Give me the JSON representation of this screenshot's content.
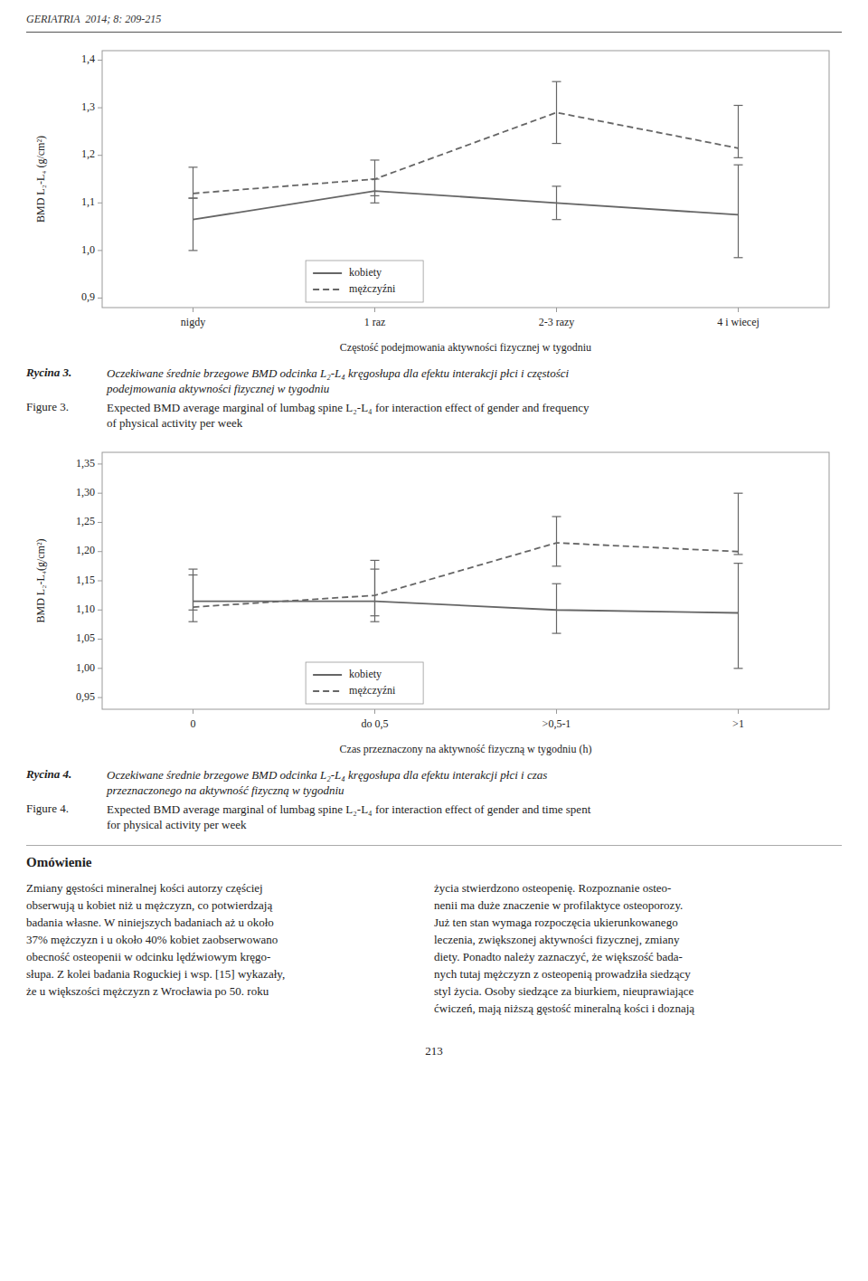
{
  "chart_data": [
    {
      "type": "line",
      "categories": [
        "nigdy",
        "1 raz",
        "2-3 razy",
        "4 i wiecej"
      ],
      "x_label": "Częstość podejmowania aktywności fizycznej w tygodniu",
      "y_label": "BMD L₂-L₄ (g/cm²)",
      "ylim": [
        0.88,
        1.42
      ],
      "yticks": [
        {
          "value": 0.9,
          "label": "0,9"
        },
        {
          "value": 1.0,
          "label": "1,0"
        },
        {
          "value": 1.1,
          "label": "1,1"
        },
        {
          "value": 1.2,
          "label": "1,2"
        },
        {
          "value": 1.3,
          "label": "1,3"
        },
        {
          "value": 1.4,
          "label": "1,4"
        }
      ],
      "grid": false,
      "legend": "lower left",
      "series": [
        {
          "name": "kobiety",
          "color": "#666666",
          "line_style": "solid",
          "values": [
            1.065,
            1.125,
            1.1,
            1.075
          ],
          "error_low": [
            0.065,
            0.025,
            0.035,
            0.09
          ],
          "error_high": [
            0.045,
            0.025,
            0.035,
            0.105
          ]
        },
        {
          "name": "mężczyźni",
          "color": "#666666",
          "line_style": "dashed",
          "values": [
            1.12,
            1.15,
            1.29,
            1.215
          ],
          "error_low": [
            0.01,
            0.035,
            0.065,
            0.02
          ],
          "error_high": [
            0.055,
            0.04,
            0.065,
            0.09
          ]
        }
      ]
    },
    {
      "type": "line",
      "categories": [
        "0",
        "do 0,5",
        ">0,5-1",
        ">1"
      ],
      "x_label": "Czas przeznaczony na aktywność fizyczną w tygodniu (h)",
      "y_label": "BMD L₂-L₄(g/cm²)",
      "ylim": [
        0.93,
        1.37
      ],
      "yticks": [
        {
          "value": 0.95,
          "label": "0,95"
        },
        {
          "value": 1.0,
          "label": "1,00"
        },
        {
          "value": 1.05,
          "label": "1,05"
        },
        {
          "value": 1.1,
          "label": "1,10"
        },
        {
          "value": 1.15,
          "label": "1,15"
        },
        {
          "value": 1.2,
          "label": "1,20"
        },
        {
          "value": 1.25,
          "label": "1,25"
        },
        {
          "value": 1.3,
          "label": "1,30"
        },
        {
          "value": 1.35,
          "label": "1,35"
        }
      ],
      "grid": false,
      "legend": "lower left",
      "series": [
        {
          "name": "kobiety",
          "color": "#666666",
          "line_style": "solid",
          "values": [
            1.115,
            1.115,
            1.1,
            1.095
          ],
          "error_low": [
            0.035,
            0.035,
            0.04,
            0.095
          ],
          "error_high": [
            0.055,
            0.055,
            0.045,
            0.085
          ]
        },
        {
          "name": "mężczyźni",
          "color": "#666666",
          "line_style": "dashed",
          "values": [
            1.105,
            1.125,
            1.215,
            1.2
          ],
          "error_low": [
            0.005,
            0.035,
            0.04,
            0.005
          ],
          "error_high": [
            0.055,
            0.06,
            0.045,
            0.1
          ]
        }
      ]
    }
  ],
  "page": {
    "header": "GERIATRIA  2014; 8: 209-215",
    "captions": [
      {
        "pl": {
          "label": "Rycina 3.",
          "lines": [
            "Oczekiwane średnie brzegowe BMD odcinka L₂-L₄ kręgosłupa dla efektu interakcji płci i częstości",
            "podejmowania aktywności fizycznej w tygodniu"
          ]
        },
        "en": {
          "label": "Figure 3.",
          "lines": [
            "Expected BMD average marginal of lumbag spine L₂-L₄ for interaction effect of gender and frequency",
            "of physical activity per week"
          ]
        }
      },
      {
        "pl": {
          "label": "Rycina 4.",
          "lines": [
            "Oczekiwane średnie brzegowe BMD odcinka L₂-L₄ kręgosłupa dla efektu interakcji płci i czas",
            "przeznaczonego na aktywność fizyczną w tygodniu"
          ]
        },
        "en": {
          "label": "Figure 4.",
          "lines": [
            "Expected BMD average marginal of lumbag spine L₂-L₄ for interaction effect of gender and time spent",
            "for physical activity per week"
          ]
        }
      }
    ],
    "section_title": "Omówienie",
    "columns": [
      [
        "Zmiany gęstości mineralnej kości autorzy częściej",
        "obserwują u kobiet niż u mężczyzn, co potwierdzają",
        "badania własne. W niniejszych badaniach aż u około",
        "37% mężczyzn i u około 40% kobiet zaobserwowano",
        "obecność osteopenii w odcinku lędźwiowym kręgo-",
        "słupa. Z kolei badania Roguckiej i wsp. [15] wykazały,",
        "że u większości mężczyzn z Wrocławia po 50. roku"
      ],
      [
        "życia stwierdzono osteopenię. Rozpoznanie osteo-",
        "nenii ma duże znaczenie w profilaktyce osteoporozy.",
        "Już ten stan wymaga rozpoczęcia ukierunkowanego",
        "leczenia, zwiększonej aktywności fizycznej, zmiany",
        "diety. Ponadto należy zaznaczyć, że większość bada-",
        "nych tutaj mężczyzn z osteopenią prowadziła siedzący",
        "styl życia. Osoby siedzące za biurkiem, nieuprawiające",
        "ćwiczeń, mają niższą gęstość mineralną kości i doznają"
      ]
    ],
    "page_number": "213"
  }
}
